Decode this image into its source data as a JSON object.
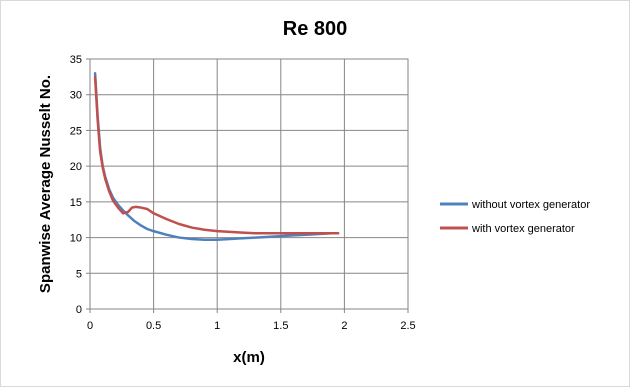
{
  "chart_data": {
    "type": "line",
    "title": "Re 800",
    "xlabel": "x(m)",
    "ylabel": "Spanwise Average Nusselt No.",
    "xlim": [
      0,
      2.5
    ],
    "ylim": [
      0,
      35
    ],
    "xticks": [
      "0",
      "0.5",
      "1",
      "1.5",
      "2",
      "2.5"
    ],
    "yticks": [
      "0",
      "5",
      "10",
      "15",
      "20",
      "25",
      "30",
      "35"
    ],
    "grid": true,
    "legend_position": "right",
    "series": [
      {
        "name": "without vortex generator",
        "color": "#4f81bd",
        "x": [
          0.04,
          0.06,
          0.08,
          0.1,
          0.12,
          0.15,
          0.18,
          0.22,
          0.26,
          0.3,
          0.35,
          0.4,
          0.45,
          0.5,
          0.6,
          0.7,
          0.8,
          0.9,
          1.0,
          1.1,
          1.2,
          1.3,
          1.4,
          1.5,
          1.6,
          1.7,
          1.8,
          1.9,
          1.95
        ],
        "y": [
          33.0,
          27.0,
          22.5,
          20.0,
          18.5,
          16.8,
          15.6,
          14.6,
          13.8,
          13.1,
          12.3,
          11.7,
          11.2,
          10.9,
          10.4,
          10.0,
          9.8,
          9.7,
          9.7,
          9.8,
          9.9,
          10.0,
          10.1,
          10.2,
          10.3,
          10.4,
          10.5,
          10.6,
          10.6
        ]
      },
      {
        "name": "with vortex generator",
        "color": "#c0504d",
        "x": [
          0.04,
          0.06,
          0.08,
          0.1,
          0.12,
          0.15,
          0.18,
          0.22,
          0.26,
          0.3,
          0.33,
          0.36,
          0.4,
          0.45,
          0.5,
          0.55,
          0.6,
          0.7,
          0.8,
          0.9,
          1.0,
          1.1,
          1.2,
          1.3,
          1.4,
          1.5,
          1.6,
          1.7,
          1.8,
          1.9,
          1.95
        ],
        "y": [
          32.5,
          26.5,
          22.0,
          19.8,
          18.2,
          16.5,
          15.2,
          14.2,
          13.4,
          13.6,
          14.2,
          14.3,
          14.2,
          14.0,
          13.4,
          13.0,
          12.6,
          11.9,
          11.4,
          11.1,
          10.9,
          10.8,
          10.7,
          10.6,
          10.6,
          10.6,
          10.6,
          10.6,
          10.6,
          10.6,
          10.6
        ]
      }
    ]
  }
}
